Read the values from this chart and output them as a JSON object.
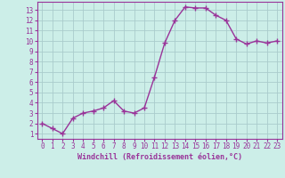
{
  "x": [
    0,
    1,
    2,
    3,
    4,
    5,
    6,
    7,
    8,
    9,
    10,
    11,
    12,
    13,
    14,
    15,
    16,
    17,
    18,
    19,
    20,
    21,
    22,
    23
  ],
  "y": [
    2,
    1.5,
    1,
    2.5,
    3,
    3.2,
    3.5,
    4.2,
    3.2,
    3,
    3.5,
    6.5,
    9.8,
    12,
    13.3,
    13.2,
    13.2,
    12.5,
    12,
    10.2,
    9.7,
    10,
    9.8,
    10
  ],
  "line_color": "#993399",
  "marker": "+",
  "markersize": 4,
  "linewidth": 1.0,
  "bg_color": "#cceee8",
  "grid_color": "#aacccc",
  "xlabel": "Windchill (Refroidissement éolien,°C)",
  "xlabel_color": "#993399",
  "tick_color": "#993399",
  "spine_color": "#993399",
  "xlim": [
    -0.5,
    23.5
  ],
  "ylim": [
    0.5,
    13.8
  ],
  "yticks": [
    1,
    2,
    3,
    4,
    5,
    6,
    7,
    8,
    9,
    10,
    11,
    12,
    13
  ],
  "xticks": [
    0,
    1,
    2,
    3,
    4,
    5,
    6,
    7,
    8,
    9,
    10,
    11,
    12,
    13,
    14,
    15,
    16,
    17,
    18,
    19,
    20,
    21,
    22,
    23
  ],
  "tick_fontsize": 5.5,
  "xlabel_fontsize": 6.0
}
